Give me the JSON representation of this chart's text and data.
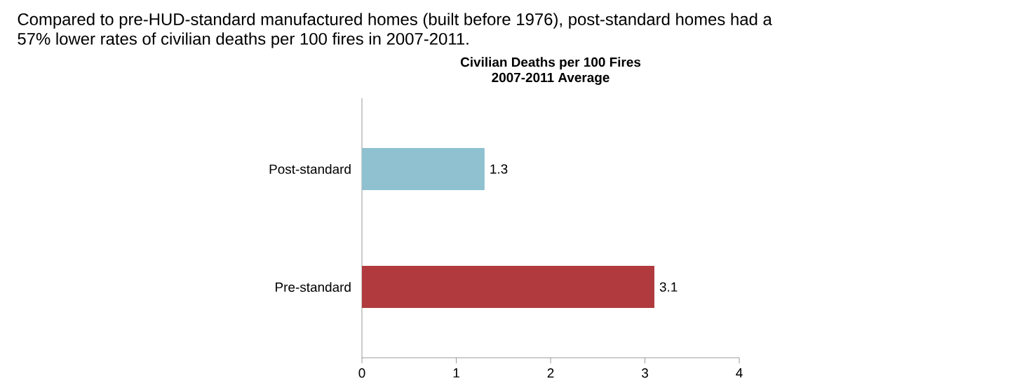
{
  "chart_data": {
    "type": "bar",
    "orientation": "horizontal",
    "title": "Civilian Deaths per 100 Fires",
    "subtitle": "2007-2011 Average",
    "annotations": [
      "Compared to pre-HUD-standard manufactured homes (built before 1976), post-standard homes had a 57% lower rates of civilian deaths per 100 fires in 2007-2011."
    ],
    "categories": [
      "Post-standard",
      "Pre-standard"
    ],
    "values": [
      1.3,
      3.1
    ],
    "colors": [
      "#8fc1d0",
      "#b03a3d"
    ],
    "xlim": [
      0,
      4
    ],
    "xticks": [
      0,
      1,
      2,
      3,
      4
    ],
    "data_labels": true,
    "grid": false
  }
}
